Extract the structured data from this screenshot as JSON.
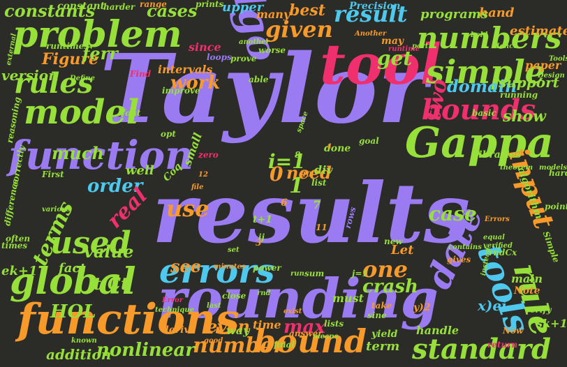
{
  "colors": {
    "background": "#2b2b28",
    "purple": "#9b7bf2",
    "green": "#97e03a",
    "pink": "#ef2f6e",
    "orange": "#f79a2a",
    "cyan": "#4fc8ee"
  },
  "words": [
    {
      "text": "Taylor",
      "color": "purple"
    },
    {
      "text": "results",
      "color": "purple"
    },
    {
      "text": "rounding",
      "color": "purple"
    },
    {
      "text": "tool",
      "color": "pink"
    },
    {
      "text": "function",
      "color": "purple"
    },
    {
      "text": "algo",
      "color": "purple"
    },
    {
      "text": "problem",
      "color": "green"
    },
    {
      "text": "Gappa",
      "color": "green"
    },
    {
      "text": "errors",
      "color": "cyan"
    },
    {
      "text": "functions",
      "color": "orange"
    },
    {
      "text": "global",
      "color": "green"
    },
    {
      "text": "model",
      "color": "green"
    },
    {
      "text": "simple",
      "color": "green"
    },
    {
      "text": "bounds",
      "color": "pink"
    },
    {
      "text": "numbers",
      "color": "green"
    },
    {
      "text": "bound",
      "color": "orange"
    },
    {
      "text": "standard",
      "color": "green"
    },
    {
      "text": "used",
      "color": "green"
    },
    {
      "text": "rules",
      "color": "green"
    },
    {
      "text": "tools",
      "color": "cyan"
    },
    {
      "text": "rule",
      "color": "green"
    },
    {
      "text": "date",
      "color": "purple"
    },
    {
      "text": "input",
      "color": "orange"
    },
    {
      "text": "result",
      "color": "cyan"
    },
    {
      "text": "given",
      "color": "orange"
    },
    {
      "text": "constants",
      "color": "green"
    },
    {
      "text": "cases",
      "color": "green"
    },
    {
      "text": "best",
      "color": "orange"
    },
    {
      "text": "get",
      "color": "green"
    },
    {
      "text": "domain",
      "color": "cyan"
    },
    {
      "text": "work",
      "color": "orange"
    },
    {
      "text": "two",
      "color": "pink"
    },
    {
      "text": "order",
      "color": "cyan"
    },
    {
      "text": "use",
      "color": "orange"
    },
    {
      "text": "one",
      "color": "orange"
    },
    {
      "text": "crash",
      "color": "green"
    },
    {
      "text": "terms",
      "color": "green"
    },
    {
      "text": "real",
      "color": "pink"
    },
    {
      "text": "value",
      "color": "green"
    },
    {
      "text": "see",
      "color": "orange"
    },
    {
      "text": "much",
      "color": "green"
    },
    {
      "text": "version",
      "color": "green"
    },
    {
      "text": "Figure",
      "color": "orange"
    },
    {
      "text": "ferr",
      "color": "green"
    },
    {
      "text": "HOL",
      "color": "green"
    },
    {
      "text": "even",
      "color": "orange"
    },
    {
      "text": "max",
      "color": "pink"
    },
    {
      "text": "number",
      "color": "orange"
    },
    {
      "text": "nonlinear",
      "color": "green"
    },
    {
      "text": "addition",
      "color": "green"
    },
    {
      "text": "fact",
      "color": "green"
    },
    {
      "text": "ek+1",
      "color": "green"
    },
    {
      "text": "t/Ct",
      "color": "green"
    },
    {
      "text": "i=1",
      "color": "green"
    },
    {
      "text": "need",
      "color": "orange"
    },
    {
      "text": "case",
      "color": "green"
    },
    {
      "text": "show",
      "color": "green"
    },
    {
      "text": "support",
      "color": "green"
    },
    {
      "text": "estimate",
      "color": "orange"
    },
    {
      "text": "hand",
      "color": "orange"
    },
    {
      "text": "programs",
      "color": "green"
    },
    {
      "text": "upper",
      "color": "cyan"
    },
    {
      "text": "many",
      "color": "orange"
    },
    {
      "text": "Precision",
      "color": "cyan"
    },
    {
      "text": "constant",
      "color": "green"
    },
    {
      "text": "range",
      "color": "orange"
    },
    {
      "text": "harder",
      "color": "green"
    },
    {
      "text": "prints",
      "color": "green"
    },
    {
      "text": "paper",
      "color": "orange"
    },
    {
      "text": "runtimes",
      "color": "green"
    },
    {
      "text": "since",
      "color": "pink"
    },
    {
      "text": "loops",
      "color": "purple"
    },
    {
      "text": "intervals",
      "color": "orange"
    },
    {
      "text": "well",
      "color": "green"
    },
    {
      "text": "small",
      "color": "green"
    },
    {
      "text": "Let",
      "color": "orange"
    },
    {
      "text": "main",
      "color": "green"
    },
    {
      "text": "Note",
      "color": "orange"
    },
    {
      "text": "sk+1",
      "color": "green"
    },
    {
      "text": "verify",
      "color": "green"
    },
    {
      "text": "handle",
      "color": "green"
    },
    {
      "text": "term",
      "color": "green"
    },
    {
      "text": "time",
      "color": "orange"
    },
    {
      "text": "way",
      "color": "green"
    },
    {
      "text": "derive",
      "color": "orange"
    },
    {
      "text": "yield",
      "color": "green"
    },
    {
      "text": "return",
      "color": "pink"
    },
    {
      "text": "Now",
      "color": "orange"
    },
    {
      "text": "basic",
      "color": "green"
    },
    {
      "text": "running",
      "color": "green"
    },
    {
      "text": "libraries",
      "color": "green"
    },
    {
      "text": "algorithm",
      "color": "green"
    },
    {
      "text": "theorem",
      "color": "green"
    },
    {
      "text": "models",
      "color": "green"
    },
    {
      "text": "Design",
      "color": "green"
    },
    {
      "text": "Tools",
      "color": "green"
    },
    {
      "text": "Hence",
      "color": "green"
    },
    {
      "text": "may",
      "color": "orange"
    },
    {
      "text": "Another",
      "color": "orange"
    },
    {
      "text": "part",
      "color": "green"
    },
    {
      "text": "runtime",
      "color": "pink"
    },
    {
      "text": "prove",
      "color": "green"
    },
    {
      "text": "worse",
      "color": "green"
    },
    {
      "text": "another",
      "color": "green"
    },
    {
      "text": "improve",
      "color": "green"
    },
    {
      "text": "Define",
      "color": "green"
    },
    {
      "text": "Find",
      "color": "pink"
    },
    {
      "text": "external",
      "color": "green"
    },
    {
      "text": "reasoning",
      "color": "green"
    },
    {
      "text": "correctly",
      "color": "green"
    },
    {
      "text": "difference",
      "color": "green"
    },
    {
      "text": "often",
      "color": "green"
    },
    {
      "text": "times",
      "color": "green"
    },
    {
      "text": "First",
      "color": "green"
    },
    {
      "text": "opt",
      "color": "green"
    },
    {
      "text": "Coq",
      "color": "green"
    },
    {
      "text": "goal",
      "color": "green"
    },
    {
      "text": "done",
      "color": "green"
    },
    {
      "text": "div",
      "color": "green"
    },
    {
      "text": "file",
      "color": "orange"
    },
    {
      "text": "zero",
      "color": "pink"
    },
    {
      "text": "list",
      "color": "green"
    },
    {
      "text": "rows",
      "color": "purple"
    },
    {
      "text": "new",
      "color": "green"
    },
    {
      "text": "sum",
      "color": "green"
    },
    {
      "text": "power",
      "color": "green"
    },
    {
      "text": "run",
      "color": "green"
    },
    {
      "text": "minutes",
      "color": "orange"
    },
    {
      "text": "close",
      "color": "green"
    },
    {
      "text": "last",
      "color": "green"
    },
    {
      "text": "rnd",
      "color": "green"
    },
    {
      "text": "exist",
      "color": "orange"
    },
    {
      "text": "answer",
      "color": "orange"
    },
    {
      "text": "final",
      "color": "green"
    },
    {
      "text": "lists",
      "color": "green"
    },
    {
      "text": "means",
      "color": "green"
    },
    {
      "text": "good",
      "color": "orange"
    },
    {
      "text": "known",
      "color": "green"
    },
    {
      "text": "must",
      "color": "green"
    },
    {
      "text": "take",
      "color": "orange"
    },
    {
      "text": "sine",
      "color": "green"
    },
    {
      "text": "contains",
      "color": "green"
    },
    {
      "text": "gives",
      "color": "orange"
    },
    {
      "text": "instead",
      "color": "green"
    },
    {
      "text": "equal",
      "color": "green"
    },
    {
      "text": "verified",
      "color": "green"
    },
    {
      "text": "Errors",
      "color": "orange"
    },
    {
      "text": "Simple",
      "color": "green"
    },
    {
      "text": "point",
      "color": "green"
    },
    {
      "text": "hard",
      "color": "green"
    },
    {
      "text": "Error",
      "color": "pink"
    },
    {
      "text": "technique",
      "color": "green"
    },
    {
      "text": "various",
      "color": "green"
    },
    {
      "text": "font",
      "color": "green"
    },
    {
      "text": "space",
      "color": "green"
    },
    {
      "text": "able",
      "color": "green"
    },
    {
      "text": "bold",
      "color": "green"
    },
    {
      "text": "set",
      "color": "green"
    },
    {
      "text": "ij",
      "color": "green"
    },
    {
      "text": "t+1",
      "color": "green"
    },
    {
      "text": "j=1",
      "color": "green"
    },
    {
      "text": "x)ei",
      "color": "cyan"
    },
    {
      "text": "y)2",
      "color": "orange"
    },
    {
      "text": "rndCx",
      "color": "green"
    },
    {
      "text": "0",
      "color": "orange"
    },
    {
      "text": "1",
      "color": "green"
    },
    {
      "text": "6",
      "color": "orange"
    },
    {
      "text": "7",
      "color": "green"
    },
    {
      "text": "11",
      "color": "orange"
    },
    {
      "text": "3",
      "color": "orange"
    },
    {
      "text": "8",
      "color": "green"
    },
    {
      "text": "10",
      "color": "orange"
    },
    {
      "text": "12",
      "color": "orange"
    },
    {
      "text": "4",
      "color": "orange"
    }
  ]
}
